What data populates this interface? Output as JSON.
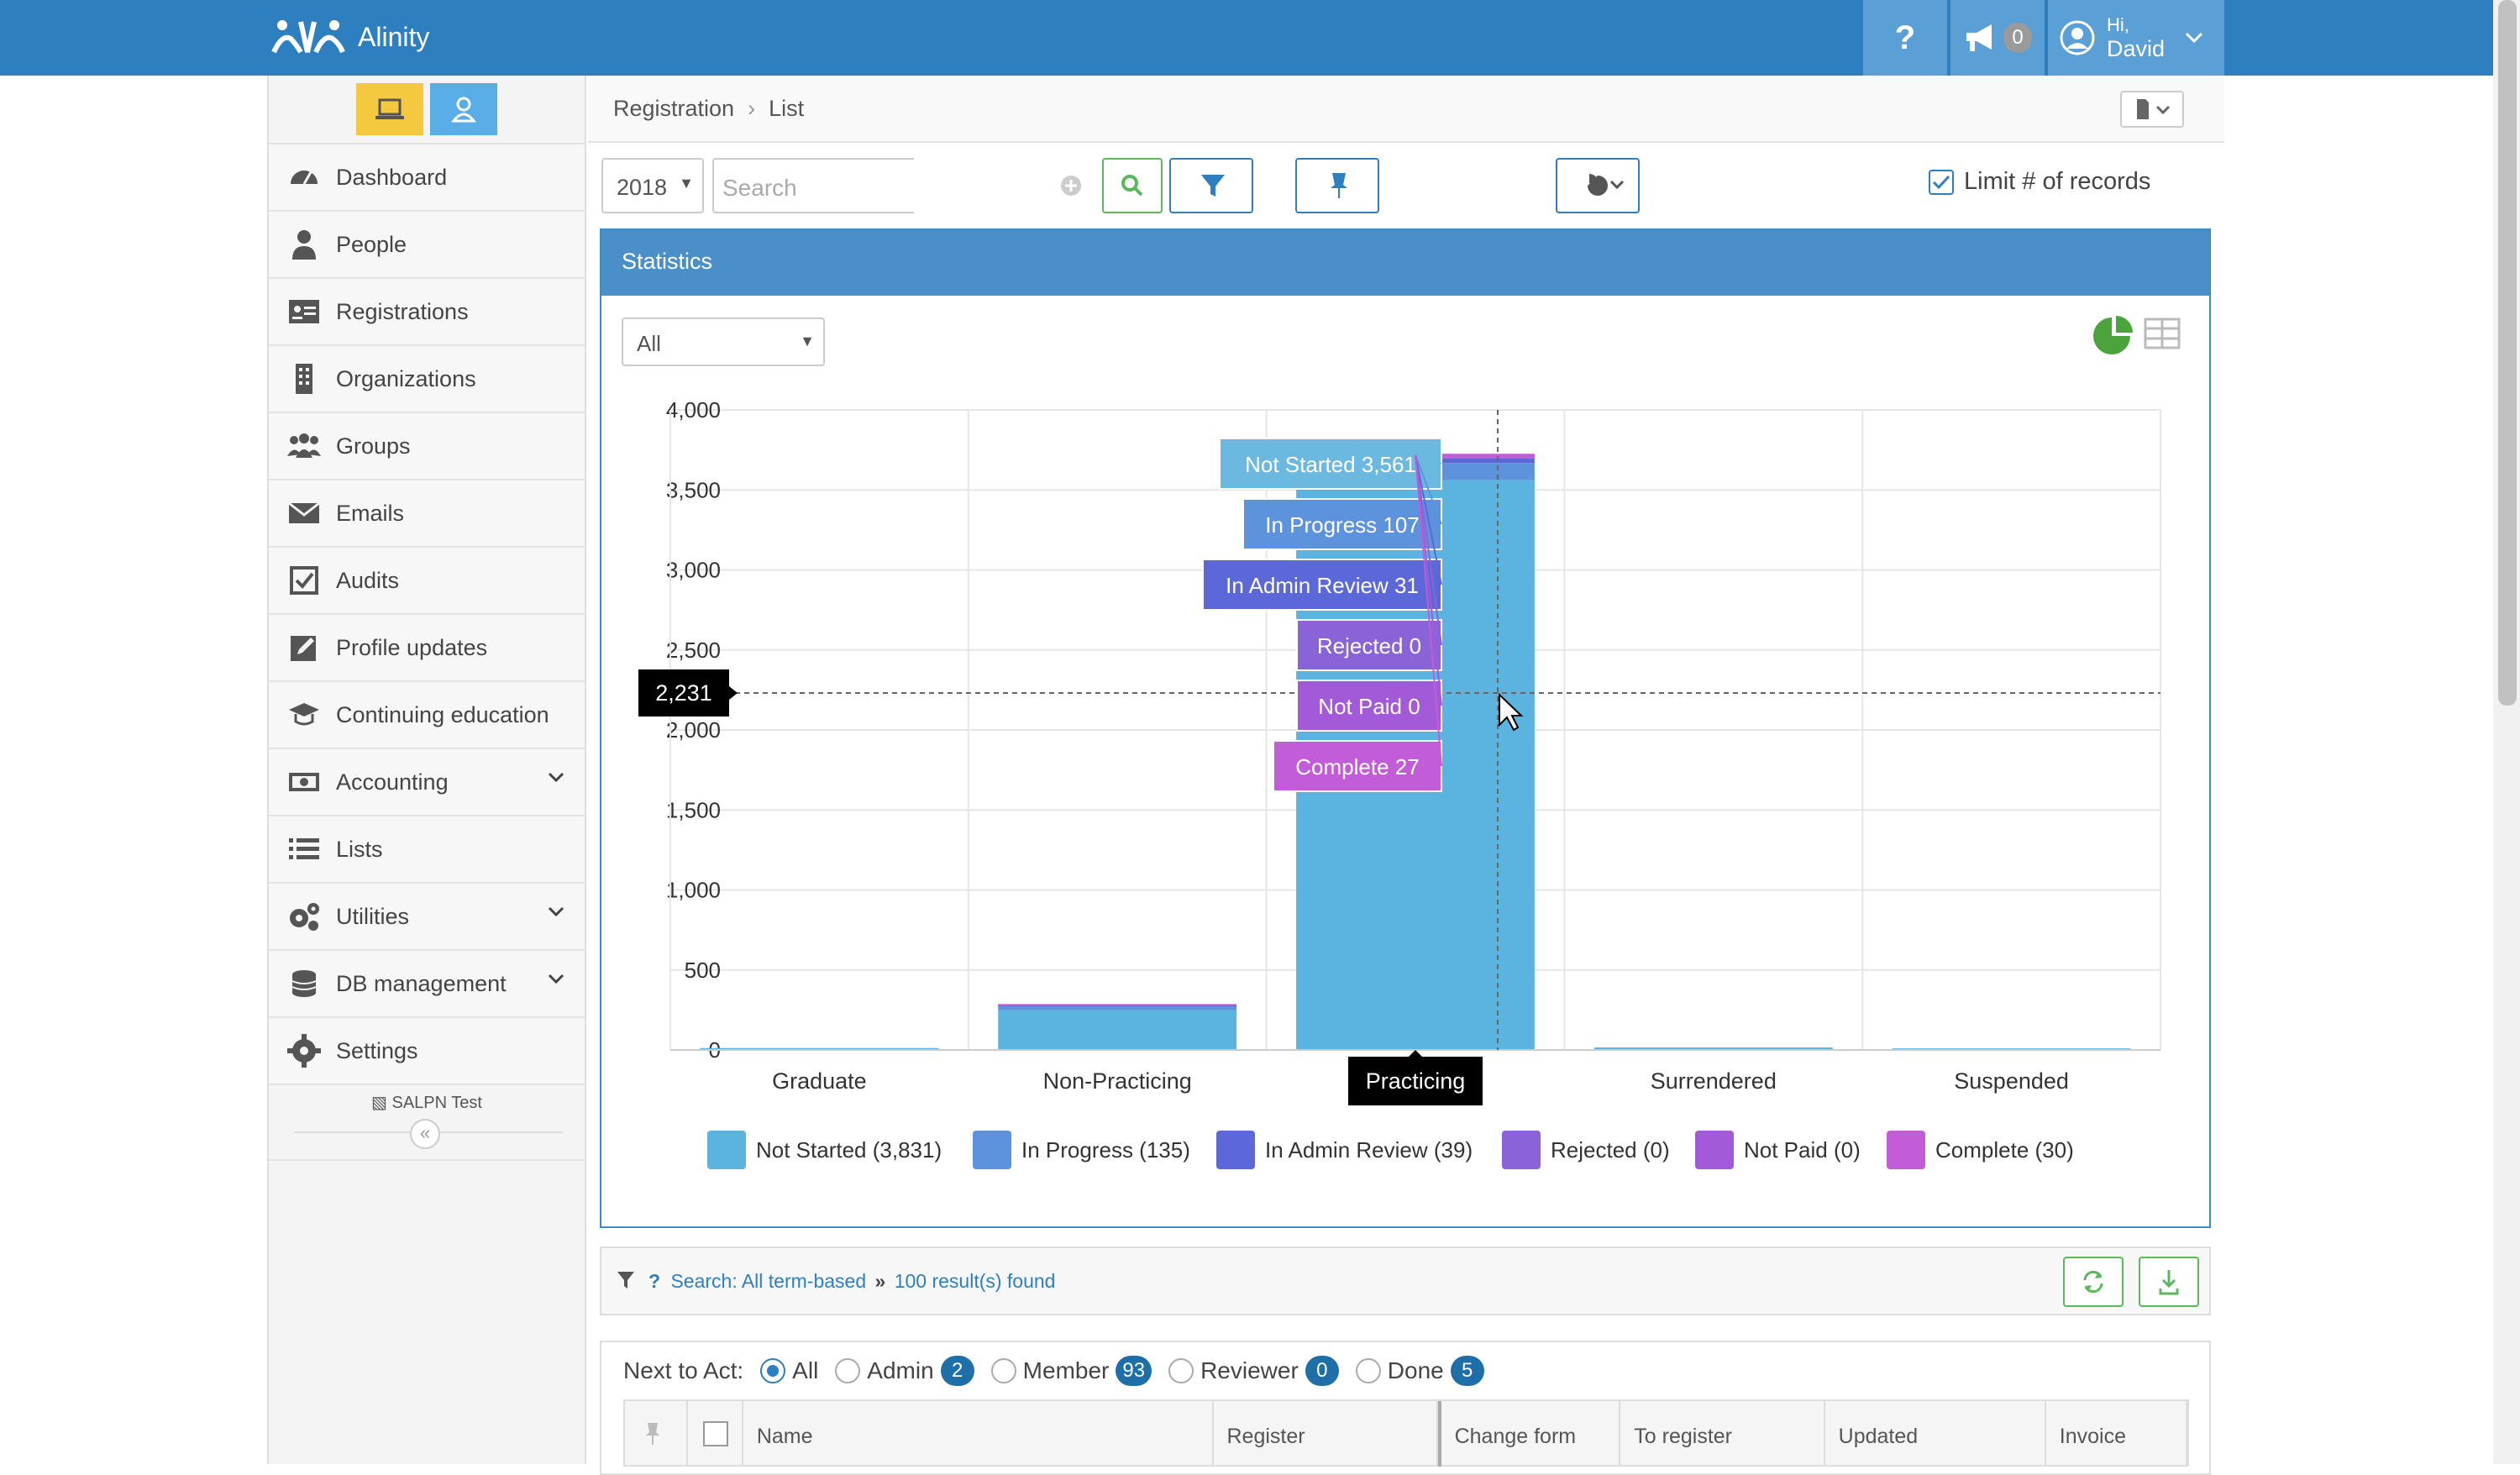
{
  "app": {
    "name": "Alinity"
  },
  "topbar": {
    "help": "?",
    "notifications_count": "0",
    "greeting": "Hi,",
    "user_name": "David"
  },
  "sidebar": {
    "items": [
      {
        "label": "Dashboard",
        "icon": "dashboard-icon"
      },
      {
        "label": "People",
        "icon": "person-icon"
      },
      {
        "label": "Registrations",
        "icon": "id-card-icon"
      },
      {
        "label": "Organizations",
        "icon": "building-icon"
      },
      {
        "label": "Groups",
        "icon": "group-icon"
      },
      {
        "label": "Emails",
        "icon": "envelope-icon"
      },
      {
        "label": "Audits",
        "icon": "checkbox-icon"
      },
      {
        "label": "Profile updates",
        "icon": "edit-icon"
      },
      {
        "label": "Continuing education",
        "icon": "graduation-cap-icon"
      },
      {
        "label": "Accounting",
        "icon": "money-icon"
      },
      {
        "label": "Lists",
        "icon": "list-icon"
      },
      {
        "label": "Utilities",
        "icon": "cogs-icon"
      },
      {
        "label": "DB management",
        "icon": "database-icon"
      },
      {
        "label": "Settings",
        "icon": "gear-icon"
      }
    ],
    "environment": "SALPN Test",
    "collapse": "«"
  },
  "breadcrumb": {
    "root": "Registration",
    "separator": "›",
    "current": "List"
  },
  "toolbar": {
    "year": "2018",
    "search_placeholder": "Search",
    "limit_label": "Limit # of records"
  },
  "statistics": {
    "title": "Statistics",
    "filter_value": "All",
    "crosshair_value": "2,231",
    "hover_category": "Practicing",
    "tooltip": [
      {
        "label": "Not Started 3,561",
        "color": "#6bb8e0"
      },
      {
        "label": "In Progress 107",
        "color": "#5d93dc"
      },
      {
        "label": "In Admin Review 31",
        "color": "#5d68d8"
      },
      {
        "label": "Rejected 0",
        "color": "#8b63d9"
      },
      {
        "label": "Not Paid 0",
        "color": "#a35ad8"
      },
      {
        "label": "Complete 27",
        "color": "#c35cd9"
      }
    ],
    "legend": [
      {
        "label": "Not Started (3,831)",
        "color": "#5bb4e0"
      },
      {
        "label": "In Progress (135)",
        "color": "#5d93dc"
      },
      {
        "label": "In Admin Review (39)",
        "color": "#5d68d8"
      },
      {
        "label": "Rejected (0)",
        "color": "#8b63d9"
      },
      {
        "label": "Not Paid (0)",
        "color": "#a35ad8"
      },
      {
        "label": "Complete (30)",
        "color": "#c35cd9"
      }
    ]
  },
  "chart_data": {
    "type": "bar",
    "stacked": true,
    "categories": [
      "Graduate",
      "Non-Practicing",
      "Practicing",
      "Surrendered",
      "Suspended"
    ],
    "series": [
      {
        "name": "Not Started",
        "values": [
          12,
          248,
          3561,
          0,
          10
        ]
      },
      {
        "name": "In Progress",
        "values": [
          0,
          28,
          107,
          0,
          0
        ]
      },
      {
        "name": "In Admin Review",
        "values": [
          0,
          8,
          31,
          0,
          0
        ]
      },
      {
        "name": "Rejected",
        "values": [
          0,
          0,
          0,
          0,
          0
        ]
      },
      {
        "name": "Not Paid",
        "values": [
          0,
          0,
          0,
          0,
          0
        ]
      },
      {
        "name": "Complete",
        "values": [
          0,
          3,
          27,
          0,
          0
        ]
      }
    ],
    "y_ticks": [
      "0",
      "500",
      "1,000",
      "1,500",
      "2,000",
      "2,500",
      "3,000",
      "3,500",
      "4,000"
    ],
    "ylim": [
      0,
      4000
    ],
    "grid": true,
    "legend_position": "bottom"
  },
  "results": {
    "search_label": "Search: All term-based",
    "count_label": "100 result(s) found"
  },
  "list": {
    "next_to_act_label": "Next to Act:",
    "options": [
      {
        "label": "All",
        "count": "",
        "selected": true
      },
      {
        "label": "Admin",
        "count": "2",
        "selected": false
      },
      {
        "label": "Member",
        "count": "93",
        "selected": false
      },
      {
        "label": "Reviewer",
        "count": "0",
        "selected": false
      },
      {
        "label": "Done",
        "count": "5",
        "selected": false
      }
    ],
    "columns": [
      "Name",
      "Register",
      "Change form",
      "To register",
      "Updated",
      "Invoice"
    ]
  }
}
